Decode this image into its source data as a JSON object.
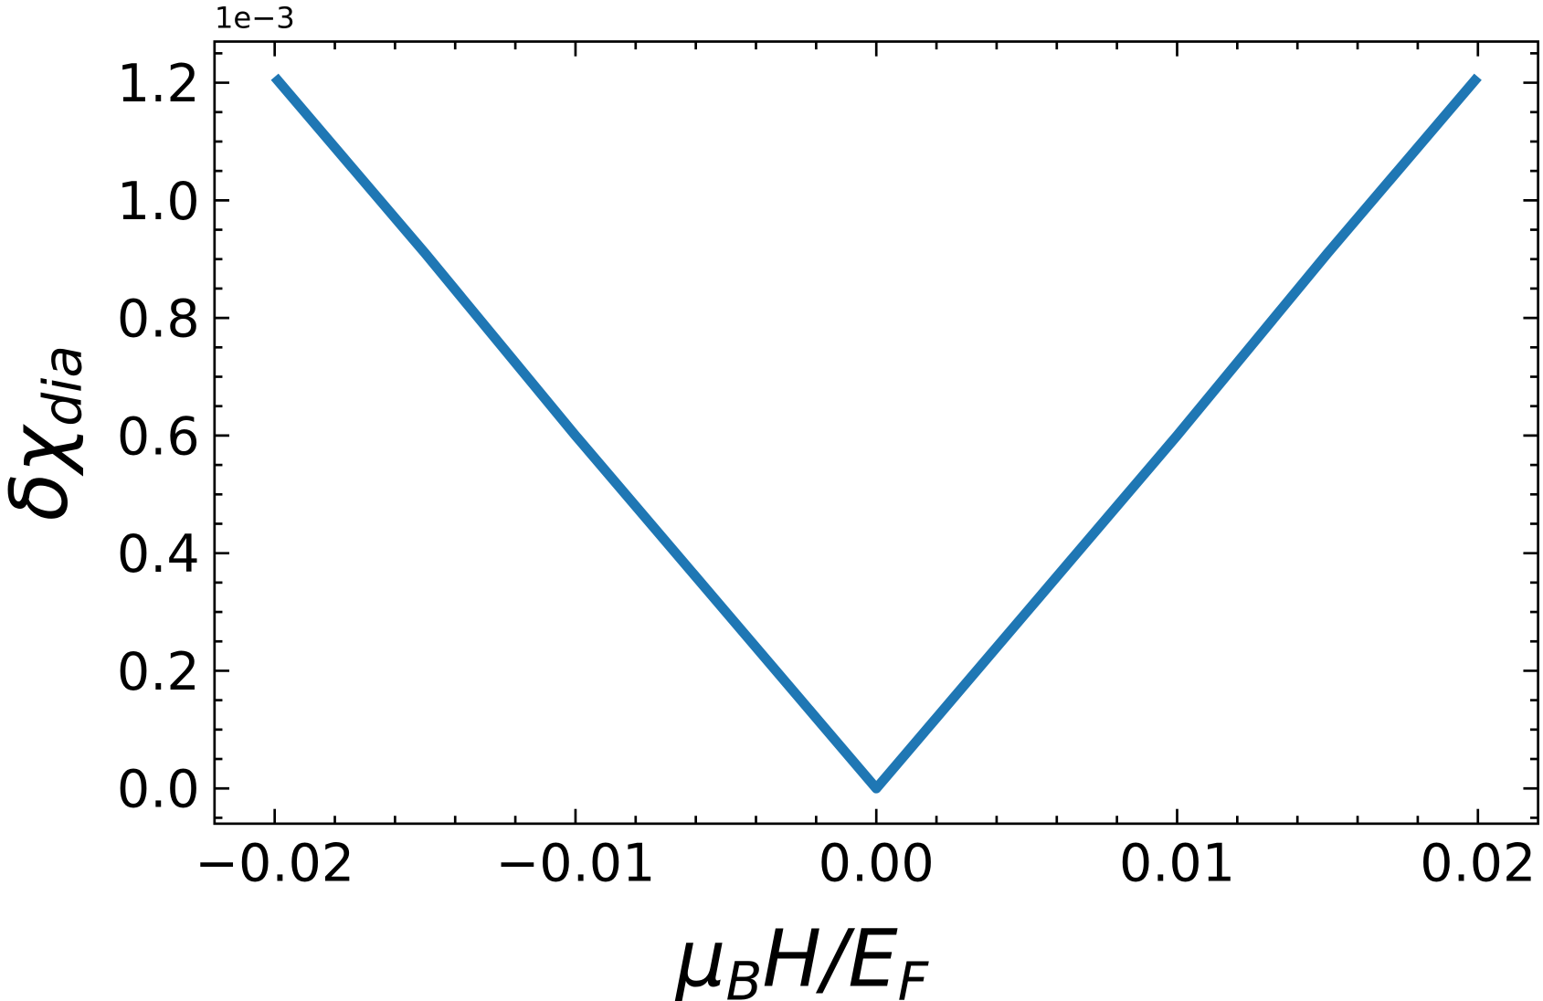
{
  "chart_data": {
    "type": "line",
    "xlabel": [
      "μ",
      "B",
      "H/E",
      "F"
    ],
    "ylabel": [
      "δχ",
      "dia"
    ],
    "y_offset_label": "1e−3",
    "x": [
      -0.02,
      -0.015,
      -0.01,
      -0.005,
      -0.002,
      -0.001,
      0,
      0.001,
      0.002,
      0.005,
      0.01,
      0.015,
      0.02
    ],
    "series": [
      {
        "color": "#1f77b4",
        "values": [
          1.21,
          0.91,
          0.6,
          0.3,
          0.12,
          0.06,
          0,
          0.06,
          0.12,
          0.3,
          0.6,
          0.91,
          1.21
        ]
      }
    ],
    "xlim": [
      -0.022,
      0.022
    ],
    "ylim": [
      -0.06,
      1.27
    ],
    "xticks": [
      {
        "value": -0.02,
        "label": "−0.02"
      },
      {
        "value": -0.01,
        "label": "−0.01"
      },
      {
        "value": 0,
        "label": "0.00"
      },
      {
        "value": 0.01,
        "label": "0.01"
      },
      {
        "value": 0.02,
        "label": "0.02"
      }
    ],
    "yticks": [
      {
        "value": 0,
        "label": "0.0"
      },
      {
        "value": 0.2,
        "label": "0.2"
      },
      {
        "value": 0.4,
        "label": "0.4"
      },
      {
        "value": 0.6,
        "label": "0.6"
      },
      {
        "value": 0.8,
        "label": "0.8"
      },
      {
        "value": 1.0,
        "label": "1.0"
      },
      {
        "value": 1.2,
        "label": "1.2"
      }
    ],
    "x_minor_ticks": [
      -0.018,
      -0.016,
      -0.014,
      -0.012,
      -0.008,
      -0.006,
      -0.004,
      -0.002,
      0.002,
      0.004,
      0.006,
      0.008,
      0.012,
      0.014,
      0.016,
      0.018
    ],
    "y_minor_ticks": [
      -0.05,
      0.05,
      0.1,
      0.15,
      0.25,
      0.3,
      0.35,
      0.45,
      0.5,
      0.55,
      0.65,
      0.7,
      0.75,
      0.85,
      0.9,
      0.95,
      1.05,
      1.1,
      1.15,
      1.25
    ],
    "tick_direction": "in",
    "ticks_all_sides": true,
    "grid": false
  }
}
